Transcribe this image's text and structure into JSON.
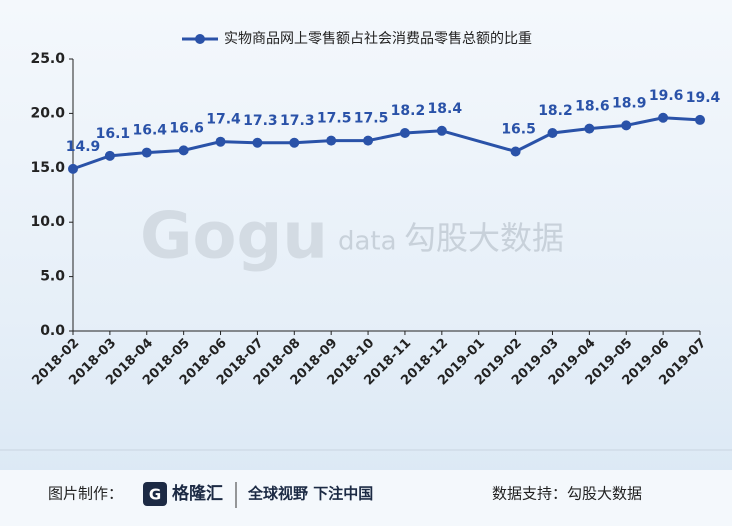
{
  "chart_data": {
    "type": "line",
    "categories": [
      "2018-02",
      "2018-03",
      "2018-04",
      "2018-05",
      "2018-06",
      "2018-07",
      "2018-08",
      "2018-09",
      "2018-10",
      "2018-11",
      "2018-12",
      "2019-01",
      "2019-02",
      "2019-03",
      "2019-04",
      "2019-05",
      "2019-06",
      "2019-07"
    ],
    "series": [
      {
        "name": "实物商品网上零售额占社会消费品零售总额的比重",
        "color": "#2a52a8",
        "values": [
          14.9,
          16.1,
          16.4,
          16.6,
          17.4,
          17.3,
          17.3,
          17.5,
          17.5,
          18.2,
          18.4,
          null,
          16.5,
          18.2,
          18.6,
          18.9,
          19.6,
          19.4
        ]
      }
    ],
    "ylim": [
      0,
      25
    ],
    "yticks": [
      {
        "value": 0,
        "label": "0.0"
      },
      {
        "value": 5,
        "label": "5.0"
      },
      {
        "value": 10,
        "label": "10.0"
      },
      {
        "value": 15,
        "label": "15.0"
      },
      {
        "value": 20,
        "label": "20.0"
      },
      {
        "value": 25,
        "label": "25.0"
      }
    ],
    "legend": "top"
  },
  "watermark": {
    "brand": "Gogu",
    "suffix": "data",
    "name": "勾股大数据"
  },
  "footer": {
    "made_by": "图片制作：",
    "logo": "格隆汇",
    "slogan": "全球视野 下注中国",
    "source": "数据支持：勾股大数据"
  }
}
